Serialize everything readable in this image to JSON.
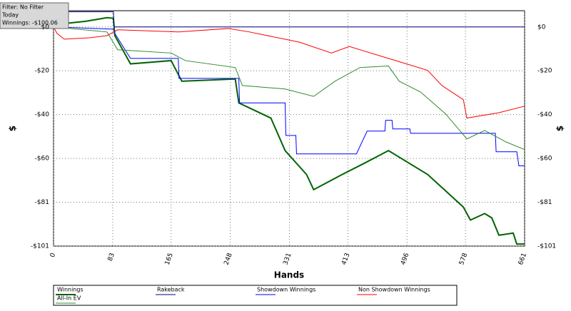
{
  "chart_data": {
    "type": "line",
    "annotations": [
      "Filter: No Filter",
      "Today",
      "Winnings: -$100.06"
    ],
    "xlabel": "Hands",
    "ylabel": "$",
    "xlim": [
      0,
      661
    ],
    "xticks": [
      0,
      83,
      165,
      248,
      331,
      413,
      496,
      578,
      661
    ],
    "ylim": [
      -101,
      7.5
    ],
    "yticks": [
      {
        "value": 0,
        "label": "$0"
      },
      {
        "value": -20.2,
        "label": "-$20"
      },
      {
        "value": -40.4,
        "label": "-$40"
      },
      {
        "value": -60.6,
        "label": "-$60"
      },
      {
        "value": -80.8,
        "label": "-$81"
      },
      {
        "value": -101,
        "label": "-$101"
      }
    ],
    "grid": true,
    "series": [
      {
        "name": "Winnings",
        "color": "#006400",
        "x": [
          0,
          3,
          15,
          45,
          75,
          84,
          86,
          108,
          165,
          180,
          255,
          260,
          305,
          325,
          355,
          365,
          405,
          435,
          470,
          525,
          575,
          585,
          605,
          615,
          625,
          645,
          650,
          661
        ],
        "values": [
          0,
          2,
          1.6,
          2.6,
          4.3,
          4,
          -4,
          -17,
          -15.5,
          -25,
          -24,
          -35,
          -42,
          -57,
          -68,
          -75,
          -68,
          -63,
          -57,
          -68,
          -83,
          -89,
          -86,
          -88,
          -96,
          -95,
          -100.06,
          -100.06
        ]
      },
      {
        "name": "Rakeback",
        "color": "#000080",
        "x": [
          0,
          3,
          84,
          85,
          661
        ],
        "values": [
          0,
          7,
          7,
          0,
          0
        ]
      },
      {
        "name": "Showdown Winnings",
        "color": "#0000ff",
        "x": [
          0,
          84,
          86,
          108,
          175,
          176,
          260,
          261,
          325,
          326,
          340,
          341,
          425,
          440,
          465,
          466,
          475,
          476,
          500,
          501,
          620,
          621,
          650,
          653,
          661
        ],
        "values": [
          0,
          -1,
          -3,
          -14.5,
          -14.5,
          -23.7,
          -23.7,
          -35,
          -35,
          -50,
          -50,
          -58.5,
          -58.5,
          -48,
          -48,
          -43,
          -43,
          -47,
          -47,
          -49,
          -49,
          -57.5,
          -57.5,
          -64,
          -64
        ]
      },
      {
        "name": "Non Showdown Winnings",
        "color": "#ff0000",
        "x": [
          0,
          5,
          15,
          50,
          75,
          90,
          175,
          245,
          275,
          345,
          390,
          415,
          465,
          495,
          525,
          545,
          575,
          580,
          625,
          661
        ],
        "values": [
          0,
          -3,
          -5.6,
          -5,
          -4,
          -1.3,
          -2.3,
          -0.7,
          -2.3,
          -7,
          -12,
          -9,
          -14,
          -17,
          -20,
          -27,
          -33.5,
          -42,
          -39.5,
          -36.5
        ]
      },
      {
        "name": "All-In EV",
        "color": "#2e8b2e",
        "x": [
          0,
          75,
          90,
          165,
          185,
          255,
          265,
          325,
          365,
          395,
          430,
          470,
          485,
          515,
          550,
          580,
          605,
          635,
          661
        ],
        "values": [
          0,
          -2.3,
          -10.5,
          -12,
          -15.5,
          -18.7,
          -27,
          -28.6,
          -32,
          -25,
          -18.7,
          -18,
          -25,
          -30,
          -40,
          -51.6,
          -47.7,
          -53,
          -56.5
        ]
      }
    ]
  }
}
